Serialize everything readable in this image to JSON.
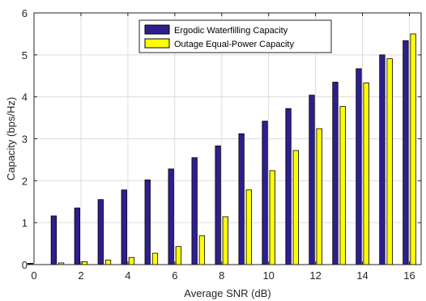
{
  "chart_data": {
    "type": "bar",
    "xlabel": "Average SNR (dB)",
    "ylabel": "Capacity (bps/Hz)",
    "xlim": [
      0,
      16.5
    ],
    "ylim": [
      0,
      6
    ],
    "xticks": [
      0,
      2,
      4,
      6,
      8,
      10,
      12,
      14,
      16
    ],
    "yticks": [
      0,
      1,
      2,
      3,
      4,
      5,
      6
    ],
    "grid": true,
    "legend_position": "top-center",
    "x": [
      0,
      1,
      2,
      3,
      4,
      5,
      6,
      7,
      8,
      9,
      10,
      11,
      12,
      13,
      14,
      15,
      16
    ],
    "series": [
      {
        "name": "Ergodic Waterfilling Capacity",
        "color": "#2e1f8f",
        "values": [
          0.03,
          1.16,
          1.35,
          1.55,
          1.78,
          2.02,
          2.28,
          2.55,
          2.83,
          3.12,
          3.42,
          3.72,
          4.04,
          4.35,
          4.67,
          5.0,
          5.34
        ]
      },
      {
        "name": "Outage Equal-Power Capacity",
        "color": "#ffff00",
        "values": [
          0.0,
          0.04,
          0.07,
          0.11,
          0.17,
          0.27,
          0.43,
          0.69,
          1.14,
          1.78,
          2.24,
          2.72,
          3.24,
          3.77,
          4.33,
          4.91,
          5.5
        ]
      }
    ]
  }
}
